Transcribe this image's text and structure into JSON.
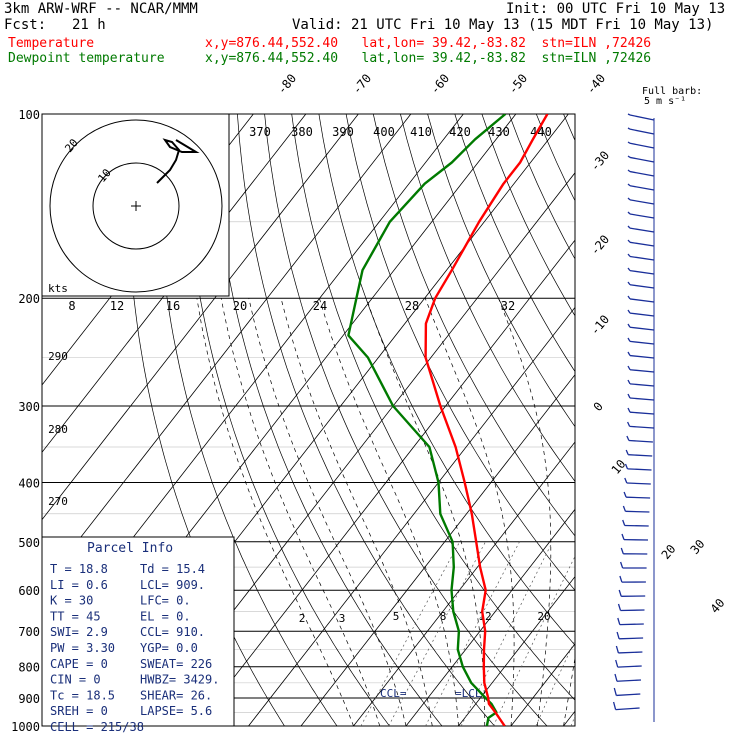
{
  "header": {
    "model": "3km ARW-WRF -- NCAR/MMM",
    "init": "Init: 00 UTC Fri 10 May 13",
    "fcst_label": "Fcst:",
    "fcst_value": "21 h",
    "valid": "Valid: 21 UTC Fri 10 May 13 (15 MDT Fri 10 May 13)",
    "temp_label": "Temperature",
    "temp_loc": "x,y=876.44,552.40   lat,lon= 39.42,-83.82  stn=ILN ,72426",
    "dew_label": "Dewpoint temperature",
    "dew_loc": "x,y=876.44,552.40   lat,lon= 39.42,-83.82  stn=ILN ,72426"
  },
  "barb_legend": {
    "line1": "Full barb:",
    "line2": "5 m s⁻¹"
  },
  "hodograph": {
    "units": "kts",
    "ring_labels": [
      "10",
      "20"
    ]
  },
  "parcel_info": {
    "title": "Parcel Info",
    "rows": [
      [
        "T  =   18.8",
        "Td =  15.4"
      ],
      [
        "LI =    0.6",
        "LCL=  909."
      ],
      [
        "K  =     30",
        "LFC=    0."
      ],
      [
        "TT =     45",
        "EL =    0."
      ],
      [
        "SWI=    2.9",
        "CCL=  910."
      ],
      [
        "PW =   3.30",
        "YGP=   0.0"
      ],
      [
        "CAPE =     0",
        "SWEAT=  226"
      ],
      [
        "CIN  =     0",
        "HWBZ= 3429."
      ],
      [
        "Tc =   18.5",
        "SHEAR=  26."
      ],
      [
        "SREH =     0",
        "LAPSE=  5.6"
      ],
      [
        "CELL = 215/38",
        ""
      ]
    ]
  },
  "chart_data": {
    "type": "skew-t",
    "pressure_ticks": [
      100,
      200,
      300,
      400,
      500,
      600,
      700,
      800,
      900,
      1000
    ],
    "isotherm_labels": [
      "-80",
      "-70",
      "-60",
      "-50",
      "-40",
      "-30",
      "-20",
      "-10",
      "0",
      "10",
      "20",
      "30",
      "40"
    ],
    "theta_labels": [
      "370",
      "380",
      "390",
      "400",
      "410",
      "420",
      "430",
      "440"
    ],
    "theta_labels_left": [
      "290",
      "280",
      "270"
    ],
    "mixing_ratio_labels_upper": [
      "8",
      "12",
      "16",
      "20",
      "24",
      "28",
      "32"
    ],
    "mixing_ratio_labels_lower": [
      "2",
      "3",
      "5",
      "8",
      "12",
      "20"
    ],
    "lcl_labels": {
      "ccl": "CCL=",
      "lcl": "=LCL"
    },
    "temperature_profile": {
      "name": "Temperature",
      "color": "#ff0000",
      "points": [
        [
          1000,
          18.8
        ],
        [
          950,
          15.0
        ],
        [
          920,
          12.5
        ],
        [
          900,
          11.5
        ],
        [
          850,
          8.5
        ],
        [
          800,
          6.0
        ],
        [
          750,
          3.5
        ],
        [
          700,
          1.0
        ],
        [
          650,
          -2.5
        ],
        [
          600,
          -5.0
        ],
        [
          550,
          -9.5
        ],
        [
          500,
          -14.0
        ],
        [
          450,
          -19.0
        ],
        [
          400,
          -25.0
        ],
        [
          350,
          -32.0
        ],
        [
          300,
          -41.0
        ],
        [
          250,
          -51.0
        ],
        [
          220,
          -56.0
        ],
        [
          200,
          -58.0
        ],
        [
          180,
          -59.0
        ],
        [
          150,
          -61.0
        ],
        [
          130,
          -62.0
        ],
        [
          120,
          -62.0
        ],
        [
          110,
          -63.0
        ],
        [
          100,
          -64.0
        ]
      ]
    },
    "dewpoint_profile": {
      "name": "Dewpoint temperature",
      "color": "#007a00",
      "points": [
        [
          1000,
          15.4
        ],
        [
          970,
          14.5
        ],
        [
          950,
          15.2
        ],
        [
          920,
          13.0
        ],
        [
          900,
          11.0
        ],
        [
          850,
          6.0
        ],
        [
          800,
          2.0
        ],
        [
          750,
          -1.5
        ],
        [
          700,
          -4.0
        ],
        [
          650,
          -8.0
        ],
        [
          600,
          -11.5
        ],
        [
          550,
          -14.5
        ],
        [
          500,
          -18.5
        ],
        [
          450,
          -25.0
        ],
        [
          400,
          -30.0
        ],
        [
          350,
          -37.0
        ],
        [
          300,
          -50.0
        ],
        [
          250,
          -62.0
        ],
        [
          230,
          -69.0
        ],
        [
          200,
          -73.0
        ],
        [
          180,
          -76.0
        ],
        [
          150,
          -78.0
        ],
        [
          130,
          -77.0
        ],
        [
          120,
          -75.0
        ],
        [
          110,
          -74.0
        ],
        [
          100,
          -72.0
        ]
      ]
    },
    "colors": {
      "temperature": "#ff0000",
      "dewpoint": "#007a00",
      "barbs": "#1a2f9a",
      "parcel_text": "#1a2f7a"
    }
  }
}
